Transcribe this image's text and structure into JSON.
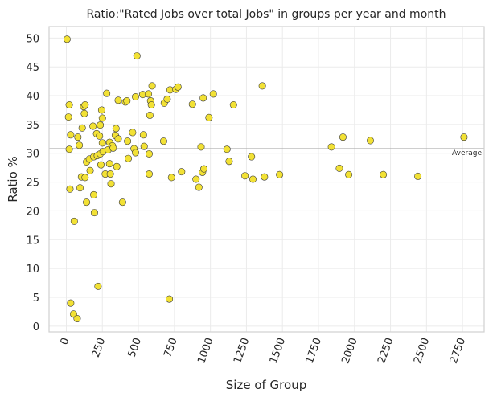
{
  "chart_data": {
    "type": "scatter",
    "title": "Ratio:\"Rated Jobs over total Jobs\" in groups per year and month",
    "xlabel": "Size of Group",
    "ylabel": "Ratio %",
    "xlim": [
      -120,
      2900
    ],
    "ylim": [
      -1,
      52
    ],
    "xticks": [
      0,
      250,
      500,
      750,
      1000,
      1250,
      1500,
      1750,
      2000,
      2250,
      2500,
      2750
    ],
    "xtick_labels": [
      "0",
      "250",
      "500",
      "750",
      "1000",
      "1250",
      "1500",
      "1750",
      "2000",
      "2250",
      "2500",
      "2750"
    ],
    "yticks": [
      0,
      5,
      10,
      15,
      20,
      25,
      30,
      35,
      40,
      45,
      50
    ],
    "ytick_labels": [
      "0",
      "5",
      "10",
      "15",
      "20",
      "25",
      "30",
      "35",
      "40",
      "45",
      "50"
    ],
    "grid": true,
    "colors": {
      "marker_fill": "#f2e135",
      "marker_edge": "#3a3a3a",
      "reference_line": "#b0b0b0",
      "grid": "#ebebeb",
      "frame": "#d0d0d0"
    },
    "reference_line": {
      "label": "Average",
      "y": 30.8
    },
    "points": [
      {
        "x": 5,
        "y": 49.8
      },
      {
        "x": 20,
        "y": 38.4
      },
      {
        "x": 15,
        "y": 36.3
      },
      {
        "x": 30,
        "y": 33.2
      },
      {
        "x": 20,
        "y": 30.7
      },
      {
        "x": 25,
        "y": 23.8
      },
      {
        "x": 55,
        "y": 18.2
      },
      {
        "x": 30,
        "y": 4.0
      },
      {
        "x": 50,
        "y": 2.1
      },
      {
        "x": 75,
        "y": 1.3
      },
      {
        "x": 80,
        "y": 32.8
      },
      {
        "x": 90,
        "y": 31.4
      },
      {
        "x": 95,
        "y": 24.0
      },
      {
        "x": 105,
        "y": 25.9
      },
      {
        "x": 110,
        "y": 34.4
      },
      {
        "x": 120,
        "y": 38.1
      },
      {
        "x": 130,
        "y": 38.4
      },
      {
        "x": 125,
        "y": 36.9
      },
      {
        "x": 130,
        "y": 25.8
      },
      {
        "x": 140,
        "y": 28.5
      },
      {
        "x": 140,
        "y": 21.5
      },
      {
        "x": 160,
        "y": 29.0
      },
      {
        "x": 165,
        "y": 27.0
      },
      {
        "x": 185,
        "y": 34.7
      },
      {
        "x": 190,
        "y": 29.4
      },
      {
        "x": 190,
        "y": 22.8
      },
      {
        "x": 195,
        "y": 19.7
      },
      {
        "x": 210,
        "y": 33.4
      },
      {
        "x": 215,
        "y": 29.6
      },
      {
        "x": 220,
        "y": 6.9
      },
      {
        "x": 230,
        "y": 33.0
      },
      {
        "x": 235,
        "y": 34.9
      },
      {
        "x": 235,
        "y": 29.9
      },
      {
        "x": 240,
        "y": 28.0
      },
      {
        "x": 245,
        "y": 37.5
      },
      {
        "x": 250,
        "y": 36.1
      },
      {
        "x": 250,
        "y": 31.8
      },
      {
        "x": 255,
        "y": 30.3
      },
      {
        "x": 270,
        "y": 26.4
      },
      {
        "x": 280,
        "y": 40.4
      },
      {
        "x": 290,
        "y": 30.6
      },
      {
        "x": 300,
        "y": 31.9
      },
      {
        "x": 300,
        "y": 28.2
      },
      {
        "x": 305,
        "y": 26.4
      },
      {
        "x": 310,
        "y": 24.7
      },
      {
        "x": 320,
        "y": 31.3
      },
      {
        "x": 325,
        "y": 30.9
      },
      {
        "x": 340,
        "y": 33.1
      },
      {
        "x": 345,
        "y": 34.3
      },
      {
        "x": 350,
        "y": 27.7
      },
      {
        "x": 360,
        "y": 39.2
      },
      {
        "x": 360,
        "y": 32.5
      },
      {
        "x": 390,
        "y": 21.5
      },
      {
        "x": 410,
        "y": 38.9
      },
      {
        "x": 420,
        "y": 39.1
      },
      {
        "x": 425,
        "y": 32.1
      },
      {
        "x": 430,
        "y": 29.1
      },
      {
        "x": 460,
        "y": 33.6
      },
      {
        "x": 470,
        "y": 30.8
      },
      {
        "x": 480,
        "y": 30.1
      },
      {
        "x": 480,
        "y": 39.8
      },
      {
        "x": 490,
        "y": 46.9
      },
      {
        "x": 530,
        "y": 40.2
      },
      {
        "x": 535,
        "y": 33.2
      },
      {
        "x": 540,
        "y": 31.2
      },
      {
        "x": 570,
        "y": 40.3
      },
      {
        "x": 575,
        "y": 29.9
      },
      {
        "x": 575,
        "y": 26.4
      },
      {
        "x": 580,
        "y": 36.6
      },
      {
        "x": 585,
        "y": 39.1
      },
      {
        "x": 590,
        "y": 38.4
      },
      {
        "x": 595,
        "y": 41.7
      },
      {
        "x": 675,
        "y": 32.1
      },
      {
        "x": 680,
        "y": 38.7
      },
      {
        "x": 700,
        "y": 39.4
      },
      {
        "x": 720,
        "y": 41.0
      },
      {
        "x": 715,
        "y": 4.7
      },
      {
        "x": 730,
        "y": 25.8
      },
      {
        "x": 760,
        "y": 41.1
      },
      {
        "x": 775,
        "y": 41.5
      },
      {
        "x": 800,
        "y": 26.8
      },
      {
        "x": 875,
        "y": 38.5
      },
      {
        "x": 900,
        "y": 25.5
      },
      {
        "x": 920,
        "y": 24.1
      },
      {
        "x": 935,
        "y": 31.1
      },
      {
        "x": 945,
        "y": 26.7
      },
      {
        "x": 950,
        "y": 39.6
      },
      {
        "x": 955,
        "y": 27.3
      },
      {
        "x": 990,
        "y": 36.2
      },
      {
        "x": 1020,
        "y": 40.3
      },
      {
        "x": 1115,
        "y": 30.7
      },
      {
        "x": 1130,
        "y": 28.6
      },
      {
        "x": 1160,
        "y": 38.4
      },
      {
        "x": 1240,
        "y": 26.1
      },
      {
        "x": 1285,
        "y": 29.4
      },
      {
        "x": 1295,
        "y": 25.5
      },
      {
        "x": 1360,
        "y": 41.7
      },
      {
        "x": 1375,
        "y": 25.9
      },
      {
        "x": 1480,
        "y": 26.3
      },
      {
        "x": 1840,
        "y": 31.1
      },
      {
        "x": 1895,
        "y": 27.4
      },
      {
        "x": 1920,
        "y": 32.8
      },
      {
        "x": 1960,
        "y": 26.3
      },
      {
        "x": 2110,
        "y": 32.2
      },
      {
        "x": 2200,
        "y": 26.3
      },
      {
        "x": 2440,
        "y": 26.0
      },
      {
        "x": 2760,
        "y": 32.8
      }
    ]
  }
}
